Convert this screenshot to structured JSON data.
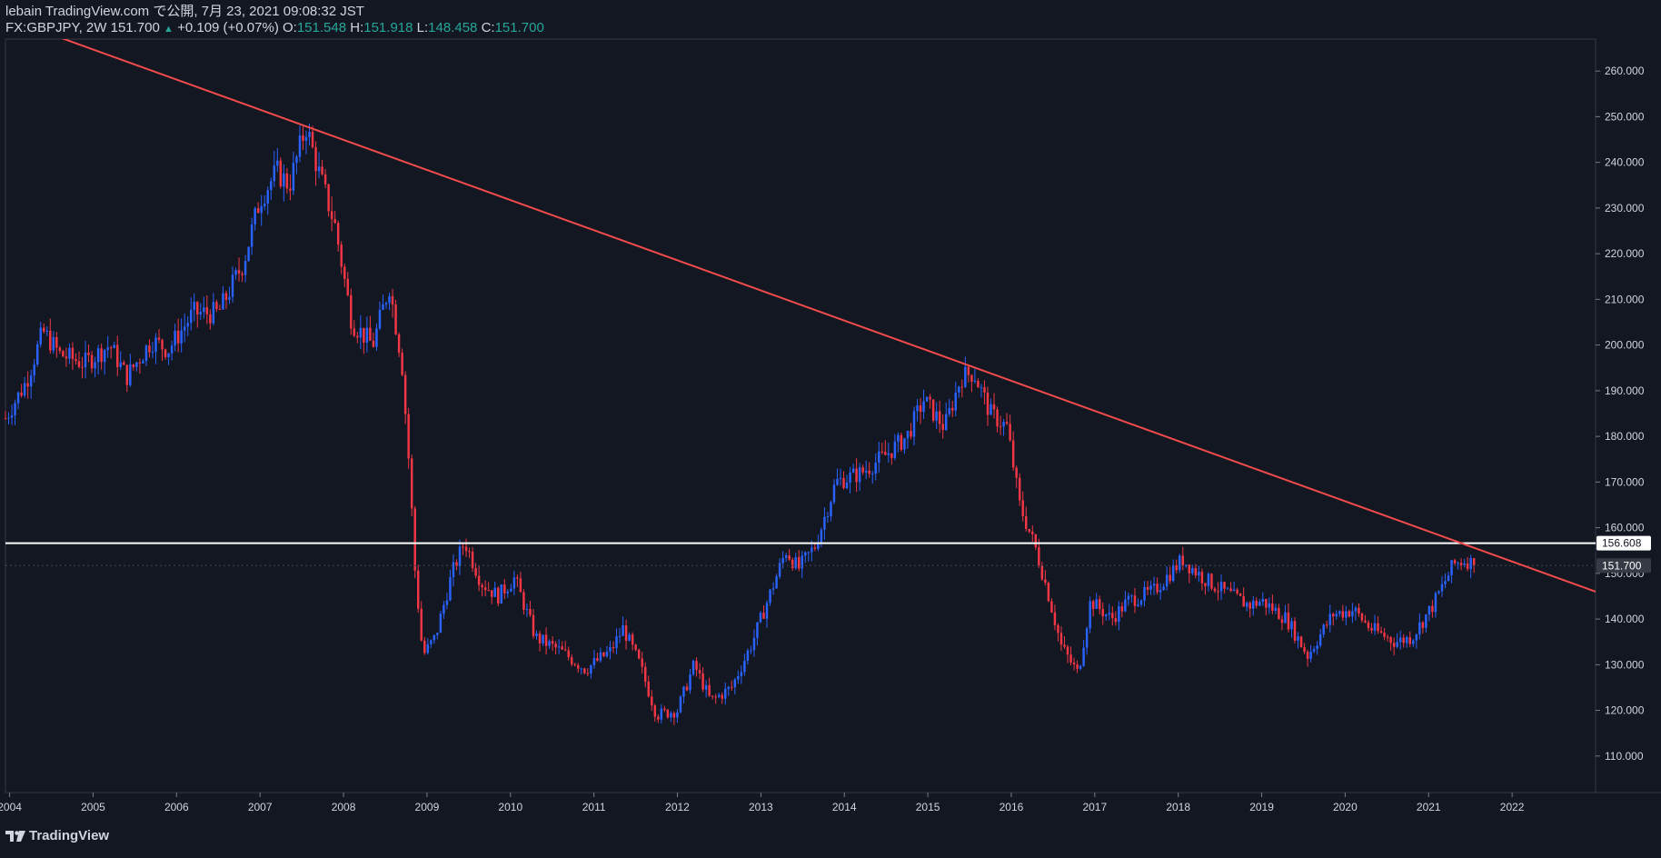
{
  "header": {
    "published": "lebain TradingView.com で公開, 7月 23, 2021 09:08:32 JST",
    "symbol": "FX:GBPJPY, 2W",
    "last": "151.700",
    "change": "+0.109 (+0.07%)",
    "o_label": "O:",
    "o": "151.548",
    "h_label": "H:",
    "h": "151.918",
    "l_label": "L:",
    "l": "148.458",
    "c_label": "C:",
    "c": "151.700"
  },
  "branding": {
    "logo_text": "TradingView"
  },
  "colors": {
    "background": "#131722",
    "up": "#2962ff",
    "down": "#f23645",
    "trendline": "#f24b4b",
    "hline": "#ffffff",
    "axis": "#363a45"
  },
  "chart_data": {
    "type": "candlestick",
    "symbol": "FX:GBPJPY",
    "timeframe": "2W",
    "x_range": [
      2003.95,
      2023.0
    ],
    "ylim": [
      102,
      267
    ],
    "y_ticks": [
      110,
      120,
      130,
      140,
      150,
      160,
      170,
      180,
      190,
      200,
      210,
      220,
      230,
      240,
      250,
      260
    ],
    "y_tick_labels": [
      "110.000",
      "120.000",
      "130.000",
      "140.000",
      "150.000",
      "160.000",
      "170.000",
      "180.000",
      "190.000",
      "200.000",
      "210.000",
      "220.000",
      "230.000",
      "240.000",
      "250.000",
      "260.000"
    ],
    "x_ticks": [
      2004,
      2005,
      2006,
      2007,
      2008,
      2009,
      2010,
      2011,
      2012,
      2013,
      2014,
      2015,
      2016,
      2017,
      2018,
      2019,
      2020,
      2021,
      2022
    ],
    "x_tick_labels": [
      "2004",
      "2005",
      "2006",
      "2007",
      "2008",
      "2009",
      "2010",
      "2011",
      "2012",
      "2013",
      "2014",
      "2015",
      "2016",
      "2017",
      "2018",
      "2019",
      "2020",
      "2021",
      "2022"
    ],
    "price_path": [
      [
        2003.95,
        184
      ],
      [
        2004.2,
        192
      ],
      [
        2004.4,
        203
      ],
      [
        2004.6,
        198
      ],
      [
        2004.9,
        196
      ],
      [
        2005.2,
        200
      ],
      [
        2005.4,
        193
      ],
      [
        2005.7,
        201
      ],
      [
        2005.9,
        199
      ],
      [
        2006.2,
        207
      ],
      [
        2006.5,
        207
      ],
      [
        2006.8,
        218
      ],
      [
        2007.0,
        232
      ],
      [
        2007.2,
        238
      ],
      [
        2007.35,
        235
      ],
      [
        2007.55,
        248
      ],
      [
        2007.7,
        238
      ],
      [
        2007.9,
        226
      ],
      [
        2008.1,
        205
      ],
      [
        2008.35,
        200
      ],
      [
        2008.55,
        213
      ],
      [
        2008.7,
        196
      ],
      [
        2008.8,
        170
      ],
      [
        2008.85,
        152
      ],
      [
        2008.95,
        132
      ],
      [
        2009.1,
        136
      ],
      [
        2009.3,
        150
      ],
      [
        2009.45,
        157
      ],
      [
        2009.65,
        148
      ],
      [
        2009.85,
        145
      ],
      [
        2010.05,
        149
      ],
      [
        2010.3,
        136
      ],
      [
        2010.6,
        133
      ],
      [
        2010.9,
        129
      ],
      [
        2011.2,
        133
      ],
      [
        2011.35,
        138
      ],
      [
        2011.55,
        130
      ],
      [
        2011.75,
        119
      ],
      [
        2012.0,
        120
      ],
      [
        2012.2,
        130
      ],
      [
        2012.4,
        122
      ],
      [
        2012.65,
        125
      ],
      [
        2012.9,
        135
      ],
      [
        2013.1,
        145
      ],
      [
        2013.3,
        155
      ],
      [
        2013.45,
        151
      ],
      [
        2013.65,
        156
      ],
      [
        2013.9,
        170
      ],
      [
        2014.2,
        172
      ],
      [
        2014.5,
        176
      ],
      [
        2014.75,
        180
      ],
      [
        2014.95,
        188
      ],
      [
        2015.2,
        182
      ],
      [
        2015.4,
        193
      ],
      [
        2015.55,
        194
      ],
      [
        2015.75,
        185
      ],
      [
        2015.95,
        182
      ],
      [
        2016.1,
        165
      ],
      [
        2016.3,
        155
      ],
      [
        2016.45,
        145
      ],
      [
        2016.6,
        134
      ],
      [
        2016.8,
        128
      ],
      [
        2016.95,
        144
      ],
      [
        2017.2,
        140
      ],
      [
        2017.4,
        144
      ],
      [
        2017.7,
        146
      ],
      [
        2017.9,
        150
      ],
      [
        2018.05,
        153
      ],
      [
        2018.3,
        149
      ],
      [
        2018.55,
        146
      ],
      [
        2018.85,
        143
      ],
      [
        2019.0,
        144
      ],
      [
        2019.3,
        140
      ],
      [
        2019.55,
        132
      ],
      [
        2019.85,
        141
      ],
      [
        2020.1,
        142
      ],
      [
        2020.3,
        138
      ],
      [
        2020.6,
        135
      ],
      [
        2020.8,
        136
      ],
      [
        2021.05,
        143
      ],
      [
        2021.3,
        152
      ],
      [
        2021.45,
        153
      ],
      [
        2021.55,
        151.7
      ]
    ],
    "trendline": {
      "from": [
        2004.2,
        270
      ],
      "to": [
        2023.0,
        146
      ],
      "color": "#f24b4b"
    },
    "horizontal_line": {
      "price": 156.608,
      "label": "156.608",
      "color": "#ffffff"
    },
    "last_price": {
      "price": 151.7,
      "label": "151.700"
    }
  }
}
